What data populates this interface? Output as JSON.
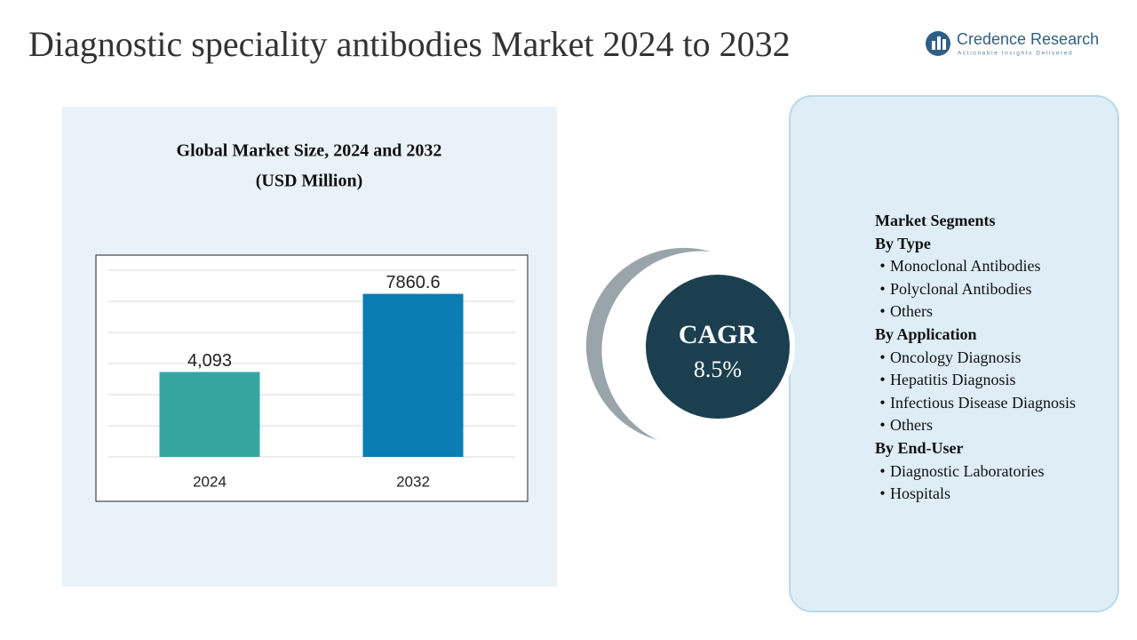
{
  "title": "Diagnostic speciality antibodies Market 2024 to 2032",
  "logo": {
    "name": "Credence Research",
    "tagline": "Actionable Insights Delivered"
  },
  "chart_data": {
    "type": "bar",
    "title": "Global Market Size, 2024 and 2032",
    "subtitle": "(USD Million)",
    "categories": [
      "2024",
      "2032"
    ],
    "values": [
      4093,
      7860.6
    ],
    "value_labels": [
      "4,093",
      "7860.6"
    ],
    "colors": [
      "#35a5a1",
      "#0a7db3"
    ],
    "ylim": [
      0,
      9000
    ]
  },
  "cagr": {
    "label": "CAGR",
    "value": "8.5%"
  },
  "segments": [
    {
      "text": "Market Segments",
      "heading": true
    },
    {
      "text": "By Type",
      "heading": true
    },
    {
      "text": "Monoclonal Antibodies",
      "heading": false
    },
    {
      "text": "Polyclonal Antibodies",
      "heading": false
    },
    {
      "text": "Others",
      "heading": false
    },
    {
      "text": "By Application",
      "heading": true
    },
    {
      "text": "Oncology Diagnosis",
      "heading": false
    },
    {
      "text": "Hepatitis Diagnosis",
      "heading": false
    },
    {
      "text": "Infectious Disease Diagnosis",
      "heading": false
    },
    {
      "text": "Others",
      "heading": false
    },
    {
      "text": "By End-User",
      "heading": true
    },
    {
      "text": "Diagnostic Laboratories",
      "heading": false
    },
    {
      "text": "Hospitals",
      "heading": false
    }
  ]
}
